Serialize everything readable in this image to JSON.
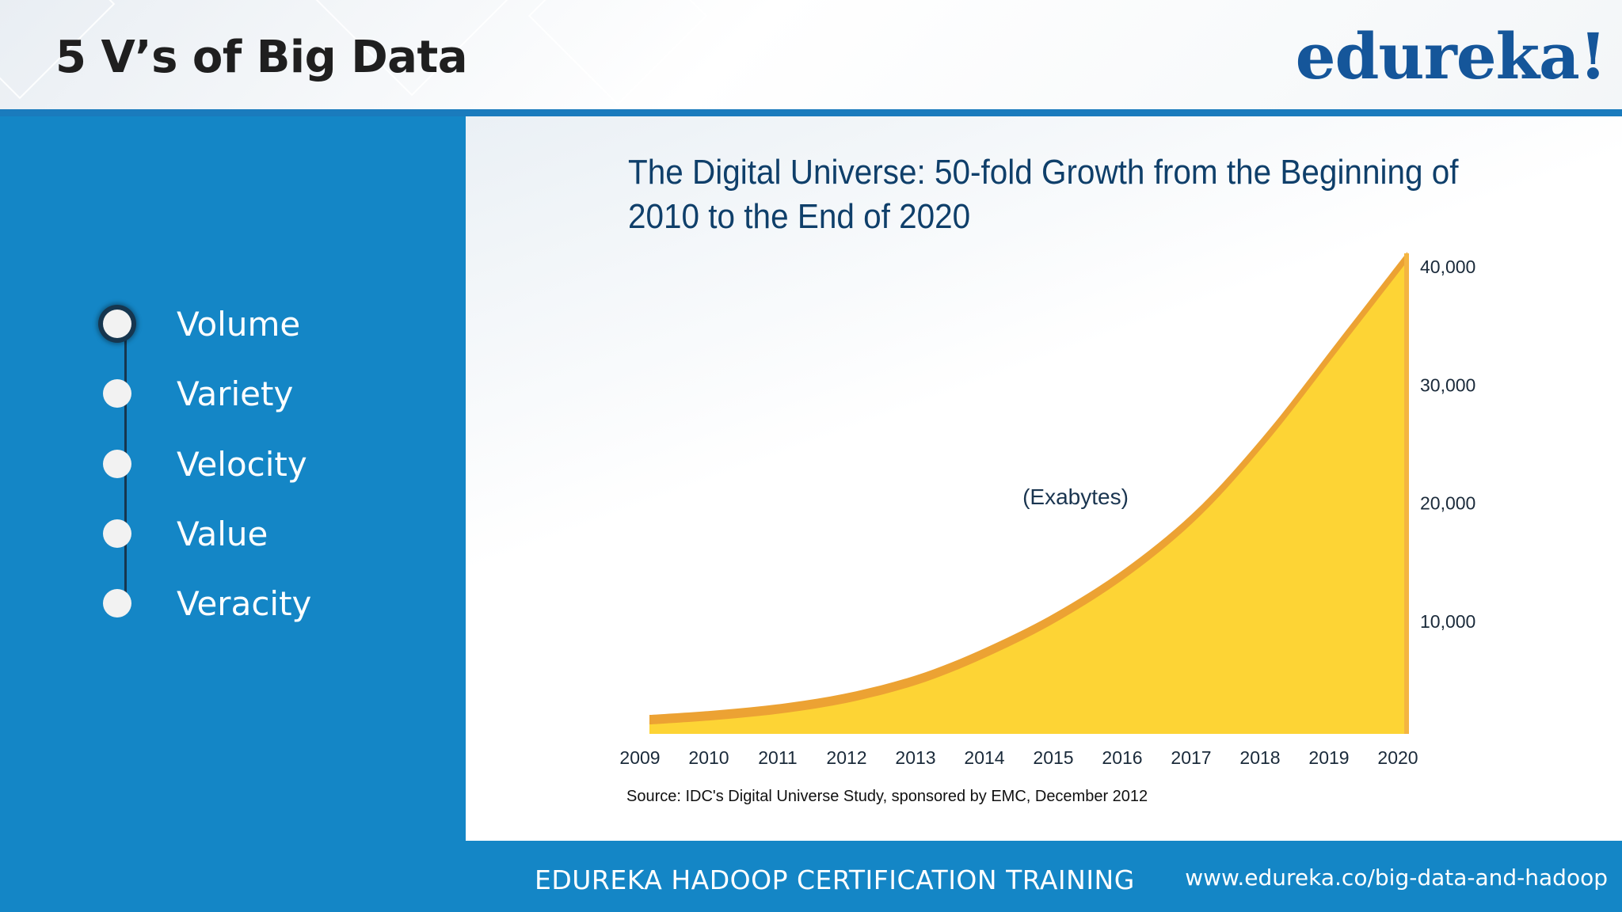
{
  "header": {
    "title": "5 V’s of Big Data",
    "logo_text": "edureka!"
  },
  "left_panel": {
    "items": [
      {
        "label": "Volume",
        "active": true
      },
      {
        "label": "Variety",
        "active": false
      },
      {
        "label": "Velocity",
        "active": false
      },
      {
        "label": "Value",
        "active": false
      },
      {
        "label": "Veracity",
        "active": false
      }
    ]
  },
  "chart_data": {
    "type": "area",
    "title": "The Digital Universe: 50-fold Growth from the Beginning of 2010 to the End of 2020",
    "title_lines": [
      "The Digital Universe: 50-fold Growth from the Beginning of",
      "2010 to the End of 2020"
    ],
    "annotation": "(Exabytes)",
    "source": "Source: IDC's Digital Universe Study, sponsored by EMC, December 2012",
    "x": [
      "2009",
      "2010",
      "2011",
      "2012",
      "2013",
      "2014",
      "2015",
      "2016",
      "2017",
      "2018",
      "2019",
      "2020"
    ],
    "values": [
      800,
      1200,
      1800,
      2800,
      4400,
      6800,
      9800,
      13600,
      18500,
      25000,
      32500,
      40000
    ],
    "ylim": [
      0,
      40000
    ],
    "y_ticks": [
      "10,000",
      "20,000",
      "30,000",
      "40,000"
    ],
    "y_axis_side": "right",
    "grid": false,
    "colors": {
      "fill": "#fdd435",
      "edge": "#eca233",
      "edge_light": "#f4b541"
    }
  },
  "footer": {
    "training": "EDUREKA HADOOP CERTIFICATION TRAINING",
    "url": "www.edureka.co/big-data-and-hadoop"
  }
}
